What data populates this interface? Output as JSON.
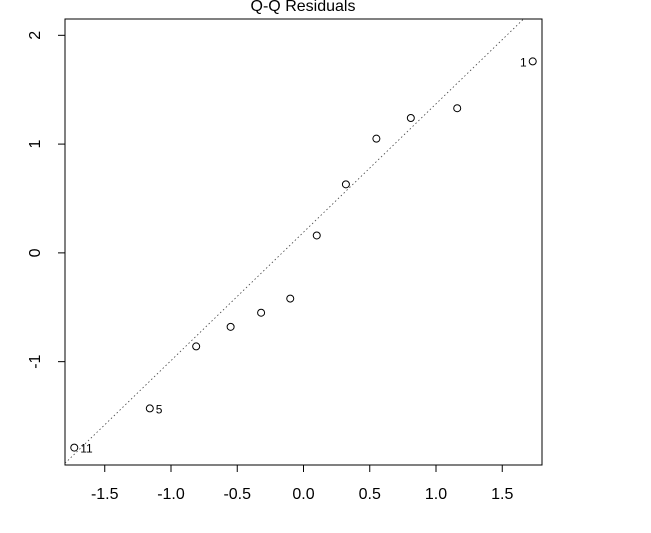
{
  "chart_data": {
    "type": "scatter",
    "title": "Q-Q Residuals",
    "xlabel": "",
    "ylabel": "",
    "xlim": [
      -1.8,
      1.8
    ],
    "ylim": [
      -1.95,
      2.15
    ],
    "xticks": [
      "-1.5",
      "-1.0",
      "-0.5",
      "0.0",
      "0.5",
      "1.0",
      "1.5"
    ],
    "yticks": [
      "-1",
      "0",
      "1",
      "2"
    ],
    "grid": false,
    "reference_line": {
      "style": "dotted",
      "intercept": 0.19,
      "slope": 1.18
    },
    "points": [
      {
        "x": -1.73,
        "y": -1.79,
        "label": "11"
      },
      {
        "x": -1.16,
        "y": -1.43,
        "label": "5"
      },
      {
        "x": -0.81,
        "y": -0.86,
        "label": ""
      },
      {
        "x": -0.55,
        "y": -0.68,
        "label": ""
      },
      {
        "x": -0.32,
        "y": -0.55,
        "label": ""
      },
      {
        "x": -0.1,
        "y": -0.42,
        "label": ""
      },
      {
        "x": 0.1,
        "y": 0.16,
        "label": ""
      },
      {
        "x": 0.32,
        "y": 0.63,
        "label": ""
      },
      {
        "x": 0.55,
        "y": 1.05,
        "label": ""
      },
      {
        "x": 0.81,
        "y": 1.24,
        "label": ""
      },
      {
        "x": 1.16,
        "y": 1.33,
        "label": ""
      },
      {
        "x": 1.73,
        "y": 1.76,
        "label": "1"
      }
    ]
  }
}
